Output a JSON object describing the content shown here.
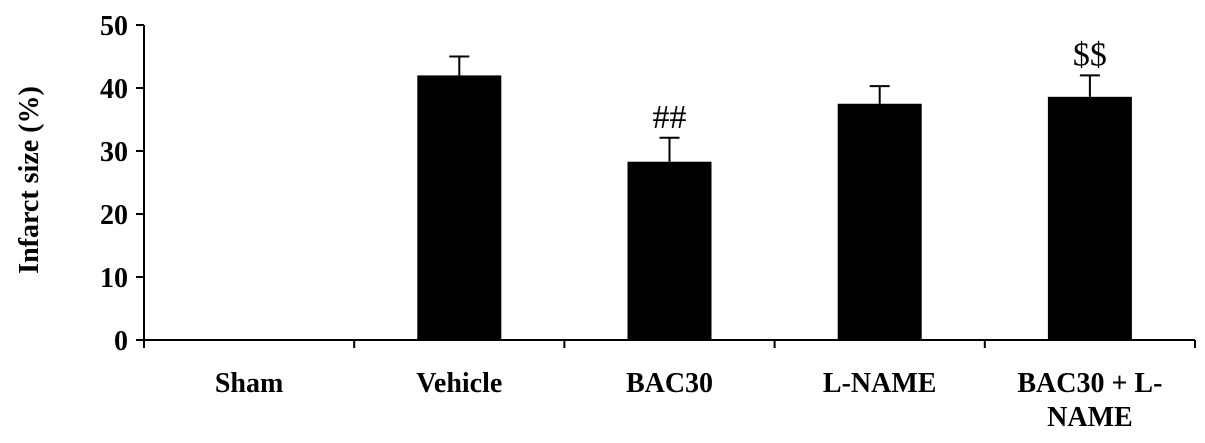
{
  "chart_data": {
    "type": "bar",
    "title": "",
    "xlabel": "",
    "ylabel": "Infarct size (%)",
    "ylim": [
      0,
      50
    ],
    "yticks": [
      0,
      10,
      20,
      30,
      40,
      50
    ],
    "categories": [
      "Sham",
      "Vehicle",
      "BAC30",
      "L-NAME",
      "BAC30 + L-NAME"
    ],
    "category_label_lines": [
      [
        "Sham"
      ],
      [
        "Vehicle"
      ],
      [
        "BAC30"
      ],
      [
        "L-NAME"
      ],
      [
        "BAC30 + L-",
        "NAME"
      ]
    ],
    "values": [
      0,
      42,
      28.3,
      37.5,
      38.6
    ],
    "errors": [
      0,
      3,
      3.8,
      2.8,
      3.4
    ],
    "annotations": [
      "",
      "",
      "##",
      "",
      "$$"
    ],
    "grid": false,
    "bar_color": "#000000"
  }
}
